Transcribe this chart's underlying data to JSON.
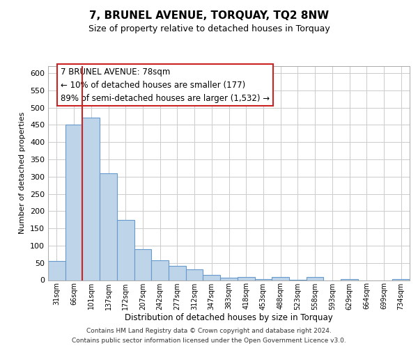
{
  "title": "7, BRUNEL AVENUE, TORQUAY, TQ2 8NW",
  "subtitle": "Size of property relative to detached houses in Torquay",
  "xlabel": "Distribution of detached houses by size in Torquay",
  "ylabel": "Number of detached properties",
  "bar_color": "#bed4e8",
  "bar_edge_color": "#6699cc",
  "highlight_line_color": "#cc2222",
  "categories": [
    "31sqm",
    "66sqm",
    "101sqm",
    "137sqm",
    "172sqm",
    "207sqm",
    "242sqm",
    "277sqm",
    "312sqm",
    "347sqm",
    "383sqm",
    "418sqm",
    "453sqm",
    "488sqm",
    "523sqm",
    "558sqm",
    "593sqm",
    "629sqm",
    "664sqm",
    "699sqm",
    "734sqm"
  ],
  "values": [
    55,
    450,
    470,
    310,
    175,
    90,
    58,
    42,
    32,
    16,
    7,
    9,
    4,
    9,
    1,
    9,
    0,
    3,
    0,
    0,
    3
  ],
  "ylim": [
    0,
    620
  ],
  "yticks": [
    0,
    50,
    100,
    150,
    200,
    250,
    300,
    350,
    400,
    450,
    500,
    550,
    600
  ],
  "highlight_bar_index": 1,
  "annotation_title": "7 BRUNEL AVENUE: 78sqm",
  "annotation_line1": "← 10% of detached houses are smaller (177)",
  "annotation_line2": "89% of semi-detached houses are larger (1,532) →",
  "annotation_box_color": "#ffffff",
  "annotation_box_edge": "#cc2222",
  "footer1": "Contains HM Land Registry data © Crown copyright and database right 2024.",
  "footer2": "Contains public sector information licensed under the Open Government Licence v3.0.",
  "background_color": "#ffffff",
  "grid_color": "#cccccc"
}
